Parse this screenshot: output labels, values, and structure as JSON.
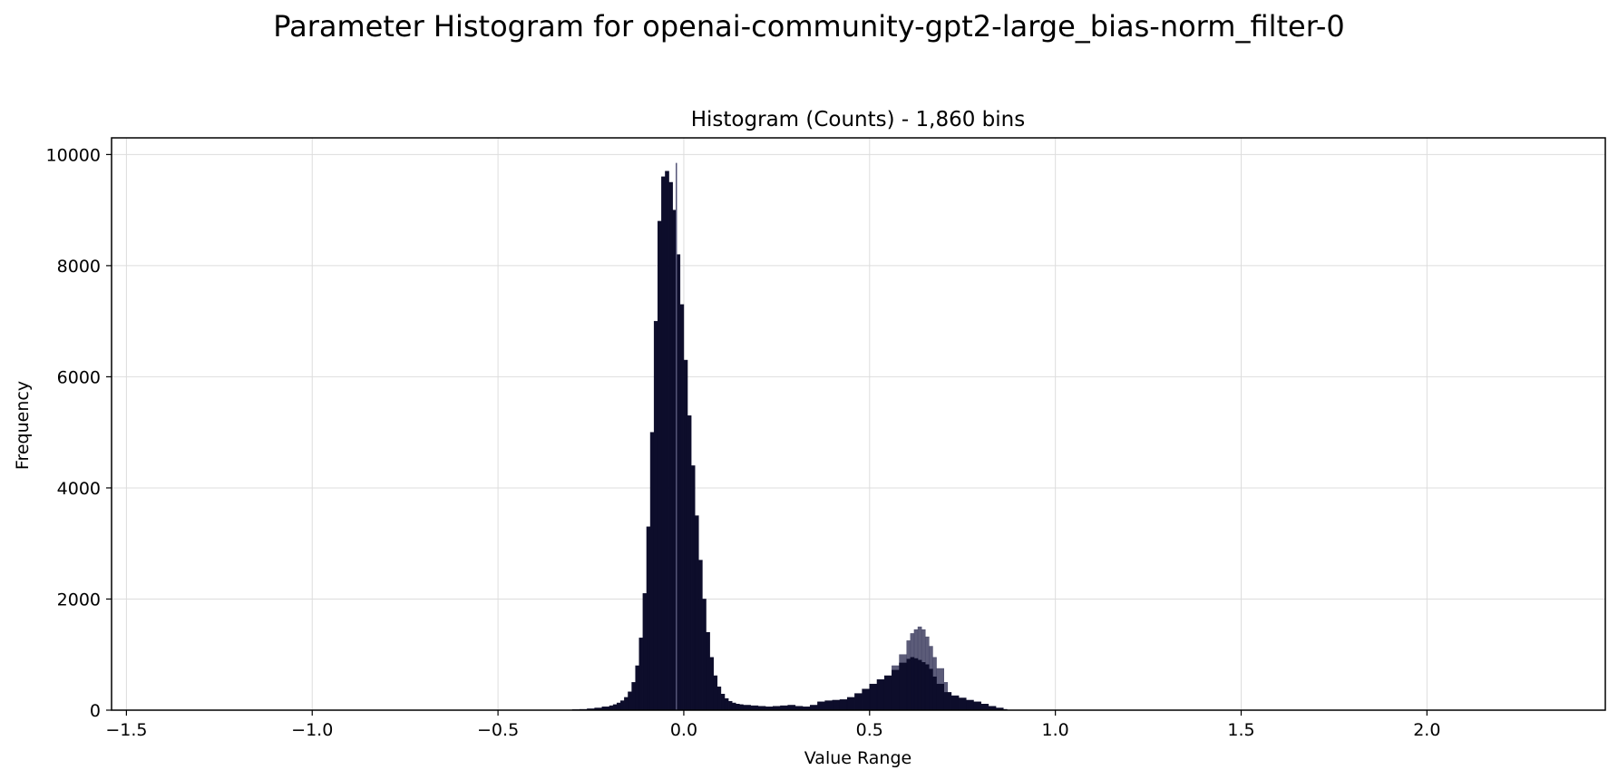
{
  "figure": {
    "suptitle": "Parameter Histogram for openai-community-gpt2-large_bias-norm_filter-0"
  },
  "chart_data": {
    "type": "bar",
    "title": "Histogram (Counts) - 1,860 bins",
    "xlabel": "Value Range",
    "ylabel": "Frequency",
    "xlim": [
      -1.54,
      2.48
    ],
    "ylim": [
      0,
      10300
    ],
    "xticks": [
      -1.5,
      -1.0,
      -0.5,
      0.0,
      0.5,
      1.0,
      1.5,
      2.0
    ],
    "xtick_labels": [
      "−1.5",
      "−1.0",
      "−0.5",
      "0.0",
      "0.5",
      "1.0",
      "1.5",
      "2.0"
    ],
    "yticks": [
      0,
      2000,
      4000,
      6000,
      8000,
      10000
    ],
    "ytick_labels": [
      "0",
      "2000",
      "4000",
      "6000",
      "8000",
      "10000"
    ],
    "grid": true,
    "bar_color": "#0d0d2b",
    "secondary_color": "#4a4a6a",
    "bin_width": 0.01,
    "series": [
      {
        "values_x": [
          -0.3,
          -0.28,
          -0.26,
          -0.24,
          -0.22,
          -0.2,
          -0.19,
          -0.18,
          -0.17,
          -0.16,
          -0.15,
          -0.14,
          -0.13,
          -0.12,
          -0.11,
          -0.1,
          -0.09,
          -0.08,
          -0.07,
          -0.06,
          -0.05,
          -0.04,
          -0.03,
          -0.02,
          -0.01,
          0.0,
          0.01,
          0.02,
          0.03,
          0.04,
          0.05,
          0.06,
          0.07,
          0.08,
          0.09,
          0.1,
          0.11,
          0.12,
          0.13,
          0.14,
          0.15,
          0.16,
          0.18,
          0.2,
          0.22,
          0.24,
          0.26,
          0.28,
          0.3,
          0.32,
          0.34,
          0.36,
          0.38,
          0.4,
          0.42,
          0.44,
          0.46,
          0.48,
          0.5,
          0.52,
          0.54,
          0.56,
          0.58,
          0.6,
          0.61,
          0.62,
          0.63,
          0.64,
          0.65,
          0.66,
          0.67,
          0.68,
          0.7,
          0.72,
          0.74,
          0.76,
          0.78,
          0.8,
          0.82,
          0.84,
          0.86
        ],
        "values": [
          10,
          15,
          25,
          40,
          60,
          80,
          100,
          130,
          170,
          230,
          330,
          500,
          800,
          1300,
          2100,
          3300,
          5000,
          7000,
          8800,
          9600,
          9700,
          9500,
          9000,
          8200,
          7300,
          6300,
          5300,
          4400,
          3500,
          2700,
          2000,
          1400,
          950,
          620,
          420,
          290,
          210,
          160,
          130,
          110,
          100,
          90,
          80,
          70,
          60,
          70,
          80,
          90,
          70,
          60,
          90,
          150,
          170,
          180,
          190,
          230,
          300,
          380,
          470,
          550,
          620,
          720,
          850,
          920,
          950,
          930,
          900,
          860,
          820,
          740,
          600,
          470,
          320,
          260,
          220,
          180,
          150,
          110,
          70,
          40,
          15
        ]
      },
      {
        "values_x": [
          0.56,
          0.58,
          0.6,
          0.61,
          0.62,
          0.63,
          0.64,
          0.65,
          0.66,
          0.67,
          0.68,
          0.7
        ],
        "values": [
          800,
          1000,
          1250,
          1380,
          1450,
          1500,
          1450,
          1320,
          1150,
          950,
          750,
          500
        ]
      }
    ],
    "spike": {
      "x": -0.02,
      "y": 9850
    }
  }
}
